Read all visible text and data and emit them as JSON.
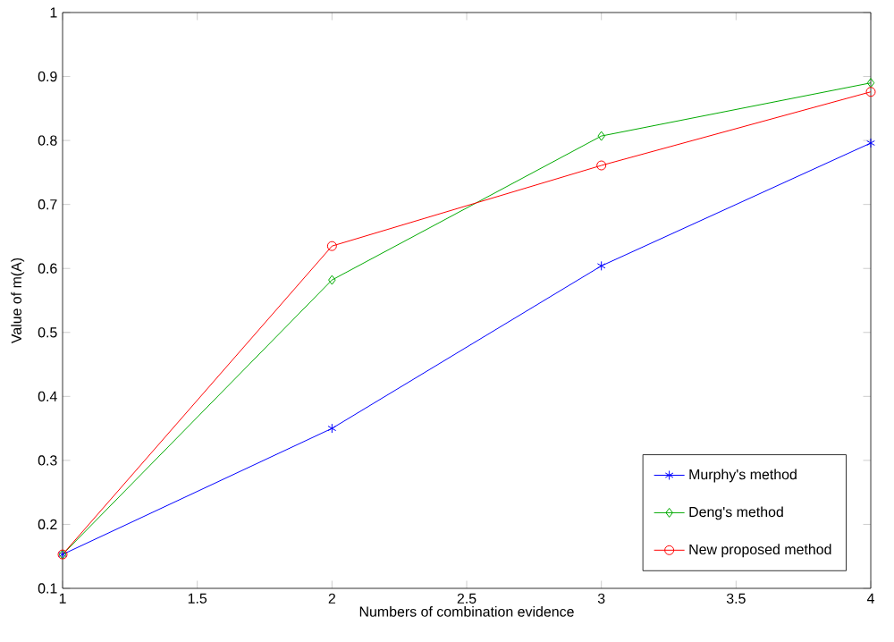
{
  "chart_data": {
    "type": "line",
    "xlabel": "Numbers of combination evidence",
    "ylabel": "Value of m(A)",
    "x": [
      1,
      2,
      3,
      4
    ],
    "series": [
      {
        "name": "Murphy's method",
        "color": "#0000ff",
        "marker": "cross",
        "values": [
          0.153,
          0.35,
          0.604,
          0.796
        ]
      },
      {
        "name": "Deng's method",
        "color": "#00aa00",
        "marker": "diamond",
        "values": [
          0.153,
          0.582,
          0.807,
          0.89
        ]
      },
      {
        "name": "New proposed method",
        "color": "#ff0000",
        "marker": "circle",
        "values": [
          0.153,
          0.635,
          0.761,
          0.876
        ]
      }
    ],
    "xlim": [
      1,
      4
    ],
    "xticks": [
      1,
      1.5,
      2,
      2.5,
      3,
      3.5,
      4
    ],
    "ylim": [
      0.1,
      1
    ],
    "yticks": [
      0.1,
      0.2,
      0.3,
      0.4,
      0.5,
      0.6,
      0.7,
      0.8,
      0.9,
      1
    ],
    "legend": "bottom right",
    "line_style": "solid",
    "grid": false
  }
}
